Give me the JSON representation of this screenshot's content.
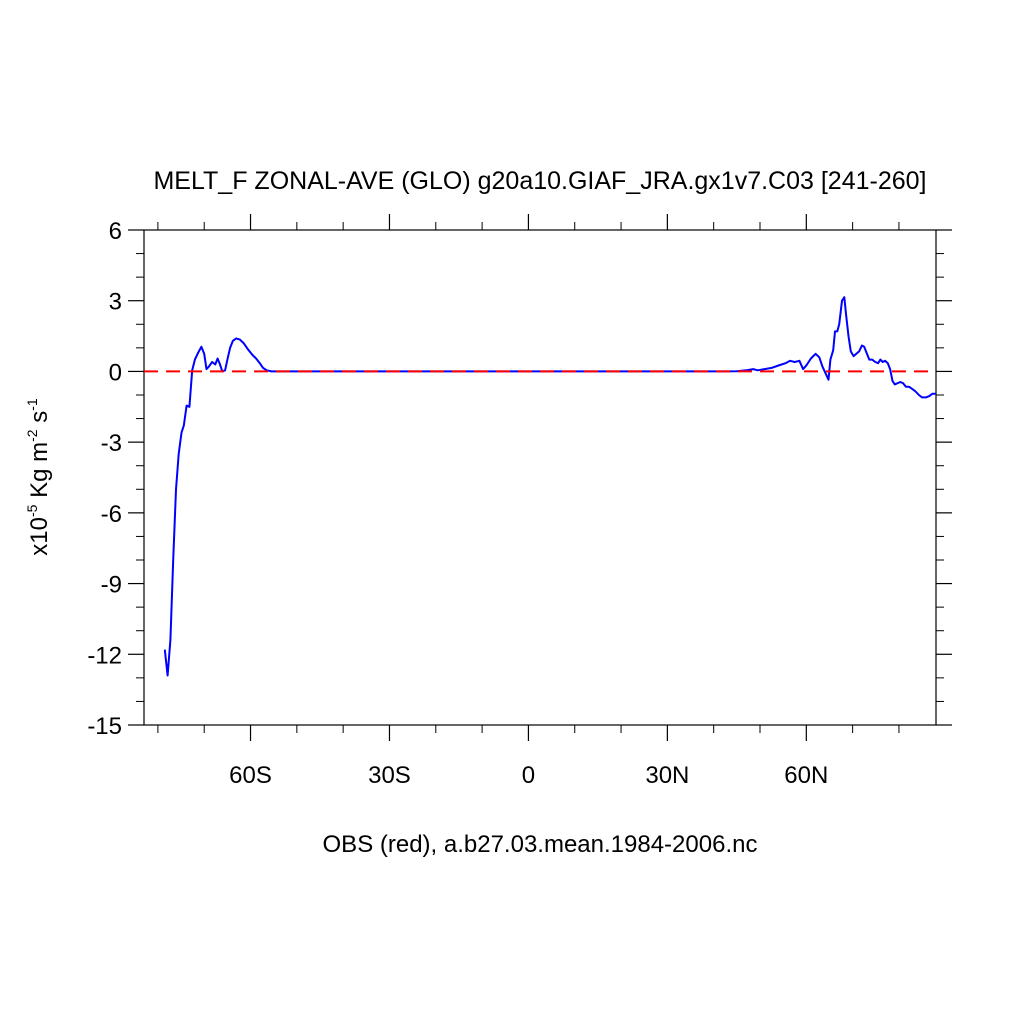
{
  "chart_data": {
    "type": "line",
    "title": "MELT_F ZONAL-AVE (GLO) g20a10.GIAF_JRA.gx1v7.C03 [241-260]",
    "xlabel": "OBS (red), a.b27.03.mean.1984-2006.nc",
    "ylabel": {
      "prefix": "x10",
      "exp1": "-5",
      "mid": " Kg m",
      "exp2": "-2",
      "mid2": " s",
      "exp3": "-1"
    },
    "xlim": [
      -83,
      88
    ],
    "ylim": [
      -15,
      6
    ],
    "x_ticks": [
      {
        "value": -60,
        "label": "60S"
      },
      {
        "value": -30,
        "label": "30S"
      },
      {
        "value": 0,
        "label": "0"
      },
      {
        "value": 30,
        "label": "30N"
      },
      {
        "value": 60,
        "label": "60N"
      }
    ],
    "y_ticks": [
      {
        "value": 6,
        "label": "6"
      },
      {
        "value": 3,
        "label": "3"
      },
      {
        "value": 0,
        "label": "0"
      },
      {
        "value": -3,
        "label": "-3"
      },
      {
        "value": -6,
        "label": "-6"
      },
      {
        "value": -9,
        "label": "-9"
      },
      {
        "value": -12,
        "label": "-12"
      },
      {
        "value": -15,
        "label": "-15"
      }
    ],
    "series": [
      {
        "color": "#0000ff",
        "style": "solid",
        "points": [
          [
            -78.5,
            -11.8
          ],
          [
            -77.9,
            -12.9
          ],
          [
            -77.3,
            -11.4
          ],
          [
            -76.7,
            -8.0
          ],
          [
            -76.1,
            -5.0
          ],
          [
            -75.5,
            -3.5
          ],
          [
            -74.9,
            -2.6
          ],
          [
            -74.4,
            -2.3
          ],
          [
            -73.8,
            -1.45
          ],
          [
            -73.2,
            -1.5
          ],
          [
            -72.6,
            0.05
          ],
          [
            -72.0,
            0.5
          ],
          [
            -71.3,
            0.8
          ],
          [
            -70.6,
            1.05
          ],
          [
            -70.0,
            0.75
          ],
          [
            -69.5,
            0.1
          ],
          [
            -69.0,
            0.2
          ],
          [
            -68.3,
            0.4
          ],
          [
            -67.6,
            0.3
          ],
          [
            -67.1,
            0.55
          ],
          [
            -66.6,
            0.3
          ],
          [
            -66.1,
            0.0
          ],
          [
            -65.5,
            0.05
          ],
          [
            -65.0,
            0.5
          ],
          [
            -64.4,
            1.0
          ],
          [
            -63.8,
            1.3
          ],
          [
            -63.1,
            1.4
          ],
          [
            -62.3,
            1.35
          ],
          [
            -61.5,
            1.2
          ],
          [
            -60.6,
            0.95
          ],
          [
            -59.6,
            0.7
          ],
          [
            -58.8,
            0.55
          ],
          [
            -58.0,
            0.35
          ],
          [
            -57.3,
            0.15
          ],
          [
            -56.5,
            0.05
          ],
          [
            -55.5,
            0.0
          ],
          [
            -50.0,
            0.0
          ],
          [
            -30.0,
            0.0
          ],
          [
            0.0,
            0.0
          ],
          [
            20.0,
            0.0
          ],
          [
            40.0,
            0.0
          ],
          [
            45.0,
            0.01
          ],
          [
            47.0,
            0.05
          ],
          [
            48.5,
            0.1
          ],
          [
            49.5,
            0.05
          ],
          [
            51.0,
            0.1
          ],
          [
            52.5,
            0.15
          ],
          [
            54.0,
            0.25
          ],
          [
            55.5,
            0.35
          ],
          [
            56.5,
            0.45
          ],
          [
            57.5,
            0.4
          ],
          [
            58.5,
            0.45
          ],
          [
            59.3,
            0.1
          ],
          [
            60.0,
            0.25
          ],
          [
            61.0,
            0.55
          ],
          [
            62.0,
            0.75
          ],
          [
            62.8,
            0.6
          ],
          [
            63.5,
            0.2
          ],
          [
            64.2,
            -0.1
          ],
          [
            64.8,
            -0.35
          ],
          [
            65.2,
            0.5
          ],
          [
            65.8,
            0.9
          ],
          [
            66.2,
            1.7
          ],
          [
            66.7,
            1.7
          ],
          [
            67.1,
            2.0
          ],
          [
            67.4,
            2.5
          ],
          [
            67.7,
            3.0
          ],
          [
            68.2,
            3.15
          ],
          [
            68.6,
            2.4
          ],
          [
            69.1,
            1.5
          ],
          [
            69.6,
            0.85
          ],
          [
            70.2,
            0.65
          ],
          [
            70.8,
            0.75
          ],
          [
            71.4,
            0.85
          ],
          [
            72.0,
            1.1
          ],
          [
            72.5,
            1.05
          ],
          [
            73.0,
            0.8
          ],
          [
            73.6,
            0.5
          ],
          [
            74.2,
            0.5
          ],
          [
            74.9,
            0.4
          ],
          [
            75.5,
            0.35
          ],
          [
            76.0,
            0.5
          ],
          [
            76.5,
            0.4
          ],
          [
            77.0,
            0.45
          ],
          [
            77.6,
            0.35
          ],
          [
            78.1,
            0.1
          ],
          [
            78.6,
            -0.4
          ],
          [
            79.1,
            -0.55
          ],
          [
            79.7,
            -0.5
          ],
          [
            80.3,
            -0.45
          ],
          [
            80.9,
            -0.5
          ],
          [
            81.5,
            -0.65
          ],
          [
            82.2,
            -0.65
          ],
          [
            82.9,
            -0.75
          ],
          [
            83.6,
            -0.85
          ],
          [
            84.3,
            -1.0
          ],
          [
            85.0,
            -1.1
          ],
          [
            85.8,
            -1.1
          ],
          [
            86.5,
            -1.05
          ],
          [
            87.2,
            -0.95
          ],
          [
            88.0,
            -0.95
          ]
        ]
      },
      {
        "color": "#ff0000",
        "style": "dashed",
        "points": [
          [
            -83,
            0
          ],
          [
            88,
            0
          ]
        ]
      }
    ],
    "grid": false
  }
}
